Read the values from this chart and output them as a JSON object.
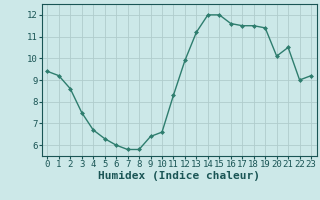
{
  "x": [
    0,
    1,
    2,
    3,
    4,
    5,
    6,
    7,
    8,
    9,
    10,
    11,
    12,
    13,
    14,
    15,
    16,
    17,
    18,
    19,
    20,
    21,
    22,
    23
  ],
  "y": [
    9.4,
    9.2,
    8.6,
    7.5,
    6.7,
    6.3,
    6.0,
    5.8,
    5.8,
    6.4,
    6.6,
    8.3,
    9.9,
    11.2,
    12.0,
    12.0,
    11.6,
    11.5,
    11.5,
    11.4,
    10.1,
    10.5,
    9.0,
    9.2
  ],
  "line_color": "#2e7d6e",
  "marker": "D",
  "marker_size": 2,
  "bg_color": "#cce8e8",
  "grid_color": "#b0cccc",
  "xlabel": "Humidex (Indice chaleur)",
  "ylim": [
    5.5,
    12.5
  ],
  "xlim": [
    -0.5,
    23.5
  ],
  "yticks": [
    6,
    7,
    8,
    9,
    10,
    11,
    12
  ],
  "xticks": [
    0,
    1,
    2,
    3,
    4,
    5,
    6,
    7,
    8,
    9,
    10,
    11,
    12,
    13,
    14,
    15,
    16,
    17,
    18,
    19,
    20,
    21,
    22,
    23
  ],
  "xtick_labels": [
    "0",
    "1",
    "2",
    "3",
    "4",
    "5",
    "6",
    "7",
    "8",
    "9",
    "10",
    "11",
    "12",
    "13",
    "14",
    "15",
    "16",
    "17",
    "18",
    "19",
    "20",
    "21",
    "22",
    "23"
  ],
  "tick_fontsize": 6.5,
  "xlabel_fontsize": 8,
  "axis_color": "#1a5555"
}
